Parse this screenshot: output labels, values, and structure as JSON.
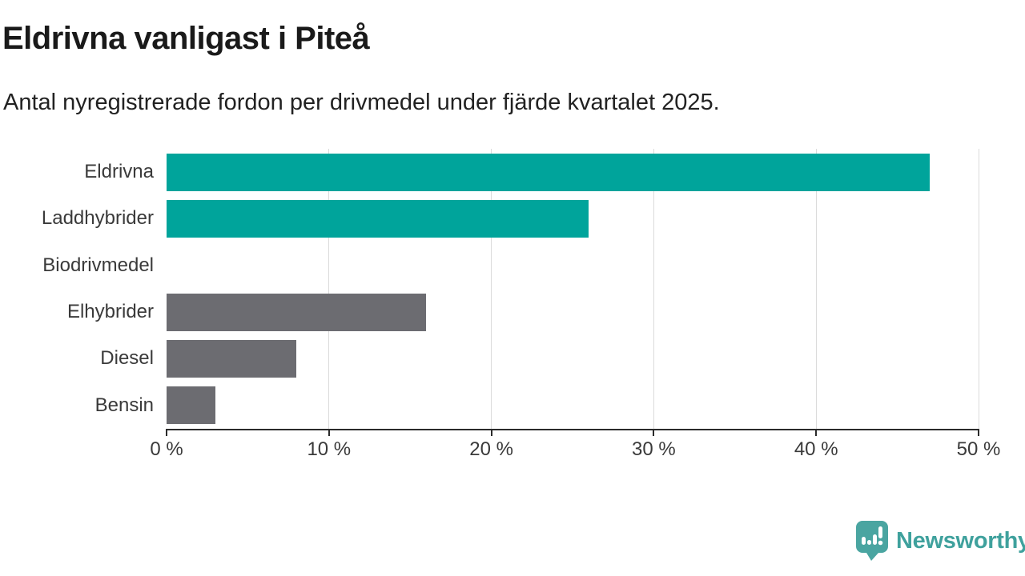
{
  "header": {
    "title": "Eldrivna vanligast i Piteå",
    "subtitle": "Antal nyregistrerade fordon per drivmedel under fjärde kvartalet 2025."
  },
  "chart_data": {
    "type": "bar",
    "orientation": "horizontal",
    "title": "Eldrivna vanligast i Piteå",
    "subtitle": "Antal nyregistrerade fordon per drivmedel under fjärde kvartalet 2025.",
    "categories": [
      "Eldrivna",
      "Laddhybrider",
      "Biodrivmedel",
      "Elhybrider",
      "Diesel",
      "Bensin"
    ],
    "values": [
      47,
      26,
      0,
      16,
      8,
      3
    ],
    "unit": "%",
    "xlim": [
      0,
      50
    ],
    "x_tick_values": [
      0,
      10,
      20,
      30,
      40,
      50
    ],
    "x_tick_labels": [
      "0 %",
      "10 %",
      "20 %",
      "30 %",
      "40 %",
      "50 %"
    ],
    "bar_colors": [
      "#00a49b",
      "#00a49b",
      null,
      "#6c6c71",
      "#6c6c71",
      "#6c6c71"
    ],
    "highlight_color": "#00a49b",
    "default_color": "#6c6c71",
    "gridline_color": "#dbdbdb",
    "axis_color": "#2b2b2b",
    "grid": "vertical",
    "legend": "none"
  },
  "footer": {
    "brand": "Newsworthy",
    "brand_color": "#3fa19d",
    "logo_color": "#4aa5a1",
    "logo_icon": "newsworthy-speech-bubble-bar-chart-icon"
  }
}
